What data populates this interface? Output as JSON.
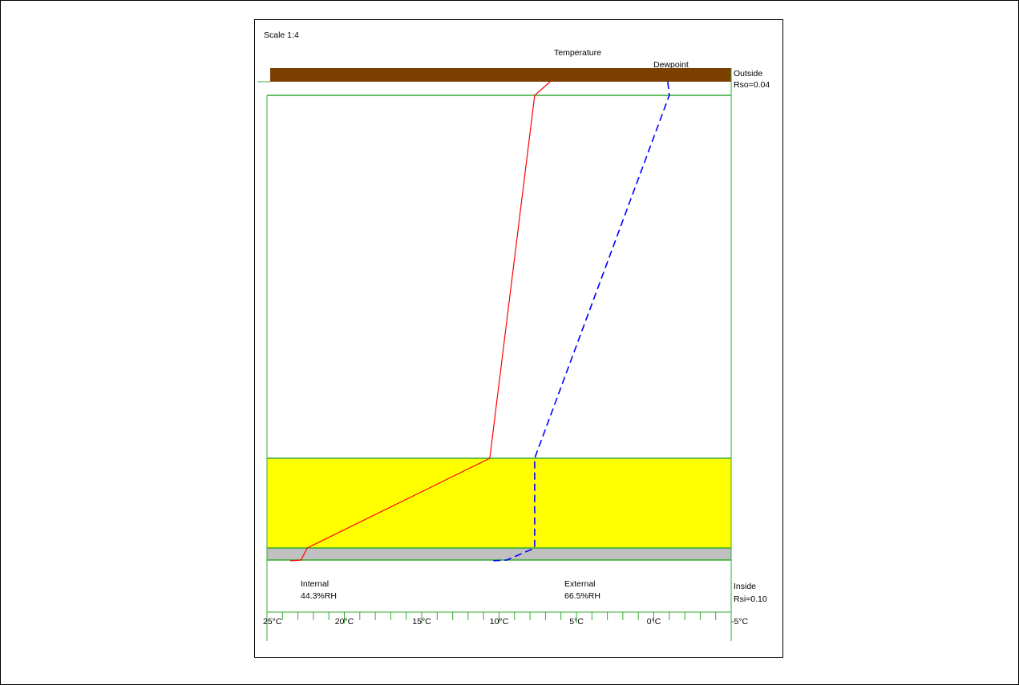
{
  "scale_label": "Scale 1:4",
  "legend": {
    "temperature_label": "Temperature",
    "dewpoint_label": "Dewpoint"
  },
  "outside": {
    "label": "Outside",
    "resistance": "Rso=0.04"
  },
  "inside": {
    "label": "Inside",
    "resistance": "Rsi=0.10"
  },
  "internal": {
    "label": "Internal",
    "rh": "44.3%RH"
  },
  "external": {
    "label": "External",
    "rh": "66.5%RH"
  },
  "colors": {
    "temperature_line": "#ff0000",
    "dewpoint_line": "#0000ff",
    "outer_layer": "#7b3f00",
    "insulation_layer": "#ffff00",
    "inner_layer": "#c0c0c0",
    "boundary_lines": "#33aa33"
  },
  "chart_data": {
    "type": "line",
    "x_axis": {
      "unit": "°C",
      "range": [
        25,
        -5
      ],
      "ticks": [
        "25°C",
        "20°C",
        "15°C",
        "10°C",
        "5°C",
        "0°C",
        "-5°C"
      ],
      "tick_values": [
        25,
        20,
        15,
        10,
        5,
        0,
        -5
      ],
      "minor_step": 1
    },
    "layers": [
      {
        "name": "outer",
        "color": "#7b3f00"
      },
      {
        "name": "cavity",
        "color": "#ffffff"
      },
      {
        "name": "insulation",
        "color": "#ffff00"
      },
      {
        "name": "inner",
        "color": "#c0c0c0"
      }
    ],
    "series": [
      {
        "name": "Temperature",
        "style": "solid",
        "color": "#ff0000",
        "temps": [
          6.7,
          7.7,
          10.6,
          22.4,
          22.8,
          23.5
        ]
      },
      {
        "name": "Dewpoint",
        "style": "dashed",
        "color": "#0000ff",
        "temps": [
          -0.9,
          -1.0,
          7.7,
          7.7,
          9.5,
          10.5
        ]
      }
    ]
  }
}
